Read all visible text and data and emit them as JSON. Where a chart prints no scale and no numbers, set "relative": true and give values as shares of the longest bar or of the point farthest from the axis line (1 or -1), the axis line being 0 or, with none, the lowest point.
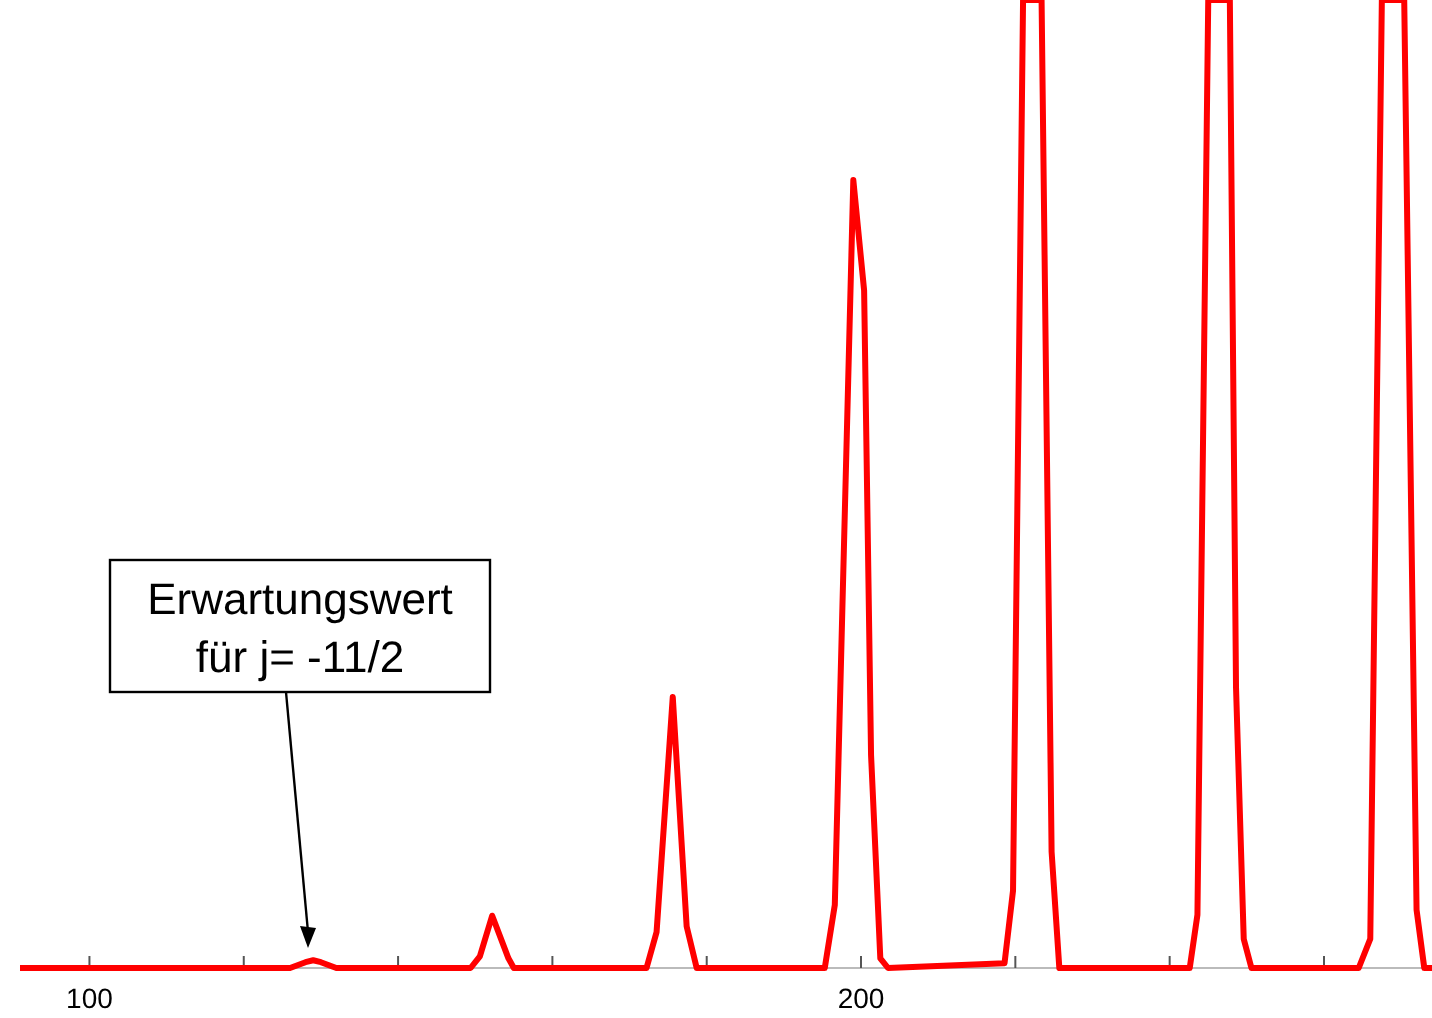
{
  "chart_data": {
    "type": "line",
    "relative": true,
    "xlim": [
      91,
      274
    ],
    "xticks": [
      100,
      {
        "value": 120,
        "label": null
      },
      {
        "value": 140,
        "label": null
      },
      {
        "value": 160,
        "label": null
      },
      {
        "value": 180,
        "label": null
      },
      200,
      {
        "value": 220,
        "label": null
      },
      {
        "value": 240,
        "label": null
      },
      {
        "value": 260,
        "label": null
      }
    ],
    "tick_labels": "x",
    "grid": false,
    "marker": "none",
    "line_style": "solid",
    "series": [
      {
        "color": "#ff0000",
        "x": [
          91,
          126,
          128,
          129,
          130,
          132,
          149.4,
          150.6,
          152.2,
          154.3,
          155,
          172.2,
          173.5,
          175.6,
          177.4,
          178.7,
          195.3,
          196.6,
          199,
          200.4,
          201.3,
          202.5,
          203.5,
          218.6,
          219.7,
          221,
          223.4,
          224.7,
          225.7,
          242.6,
          243.6,
          245,
          247.8,
          248.6,
          249.6,
          250.6,
          264.5,
          266,
          267.5,
          270.4,
          272,
          273,
          274
        ],
        "values": [
          0,
          0,
          0.006,
          0.008,
          0.006,
          0,
          0,
          0.012,
          0.054,
          0.01,
          0,
          0,
          0.037,
          0.28,
          0.043,
          0,
          0,
          0.065,
          0.814,
          0.7,
          0.22,
          0.01,
          0,
          0.005,
          0.08,
          1,
          1,
          0.12,
          0,
          0,
          0.055,
          1,
          1,
          0.29,
          0.03,
          0,
          0,
          0.03,
          1,
          1,
          0.06,
          0,
          0
        ]
      }
    ],
    "annotations": [
      "Erwartungswert\nfür j= -11/2"
    ]
  }
}
